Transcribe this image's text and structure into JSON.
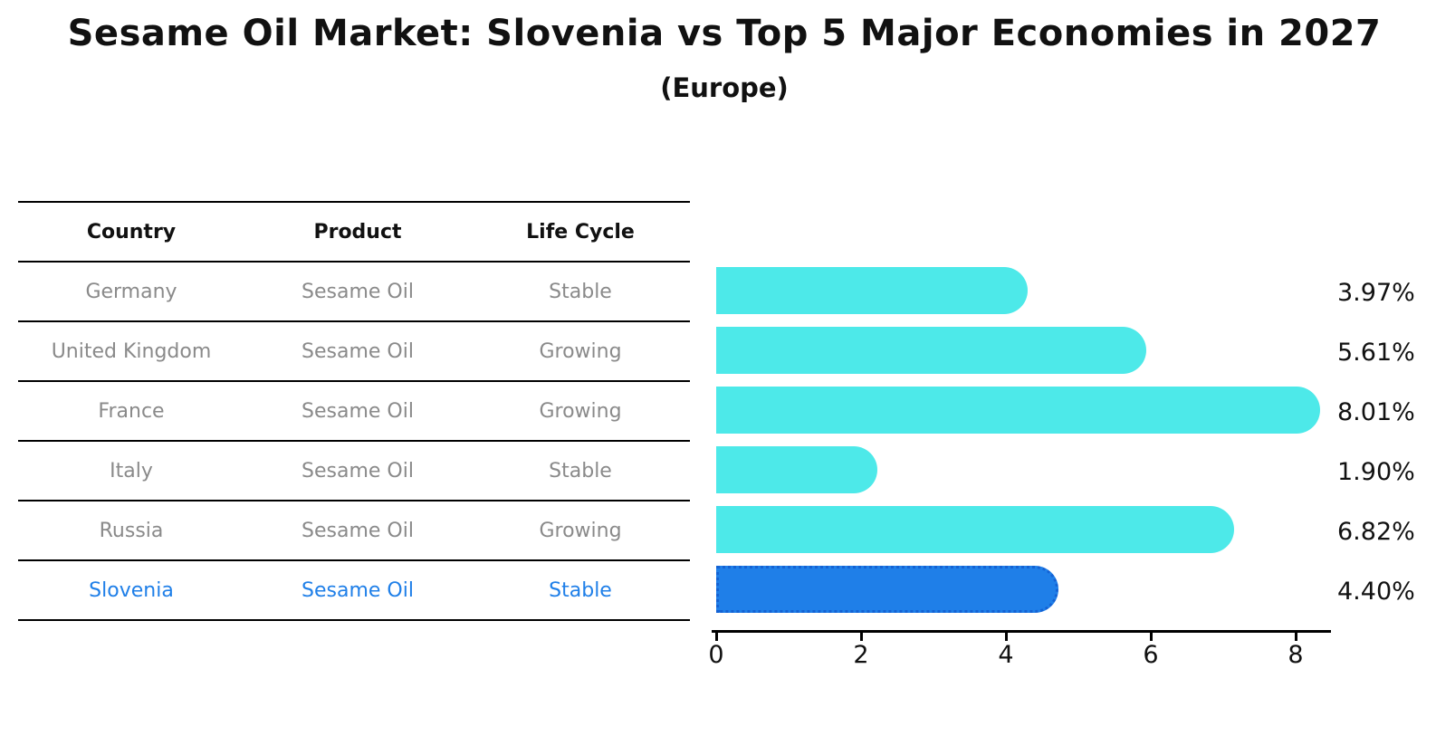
{
  "chart_data": {
    "type": "bar",
    "orientation": "horizontal",
    "title": "Sesame Oil Market: Slovenia vs Top 5 Major Economies in 2027",
    "subtitle": "(Europe)",
    "categories": [
      "Germany",
      "United Kingdom",
      "France",
      "Italy",
      "Russia",
      "Slovenia"
    ],
    "values": [
      3.97,
      5.61,
      8.01,
      1.9,
      6.82,
      4.4
    ],
    "value_labels": [
      "3.97%",
      "5.61%",
      "8.01%",
      "1.90%",
      "6.82%",
      "4.40%"
    ],
    "xlim": [
      0,
      8.5
    ],
    "x_tick_labels": [
      "0",
      "2",
      "4",
      "6",
      "8"
    ],
    "grid": "off",
    "legend": "none",
    "bar_color": "#4de9e9",
    "highlight_color": "#1f7fe8",
    "highlight_index": 5
  },
  "table": {
    "headers": [
      "Country",
      "Product",
      "Life Cycle"
    ],
    "rows": [
      {
        "country": "Germany",
        "product": "Sesame Oil",
        "life_cycle": "Stable"
      },
      {
        "country": "United Kingdom",
        "product": "Sesame Oil",
        "life_cycle": "Growing"
      },
      {
        "country": "France",
        "product": "Sesame Oil",
        "life_cycle": "Growing"
      },
      {
        "country": "Italy",
        "product": "Sesame Oil",
        "life_cycle": "Stable"
      },
      {
        "country": "Russia",
        "product": "Sesame Oil",
        "life_cycle": "Growing"
      },
      {
        "country": "Slovenia",
        "product": "Sesame Oil",
        "life_cycle": "Stable"
      }
    ]
  },
  "colors": {
    "bar": "#4de9e9",
    "highlight_bar": "#1f7fe8",
    "highlight_text": "#1f7fe8",
    "table_text": "#8a8a8a",
    "axis": "#000000"
  }
}
